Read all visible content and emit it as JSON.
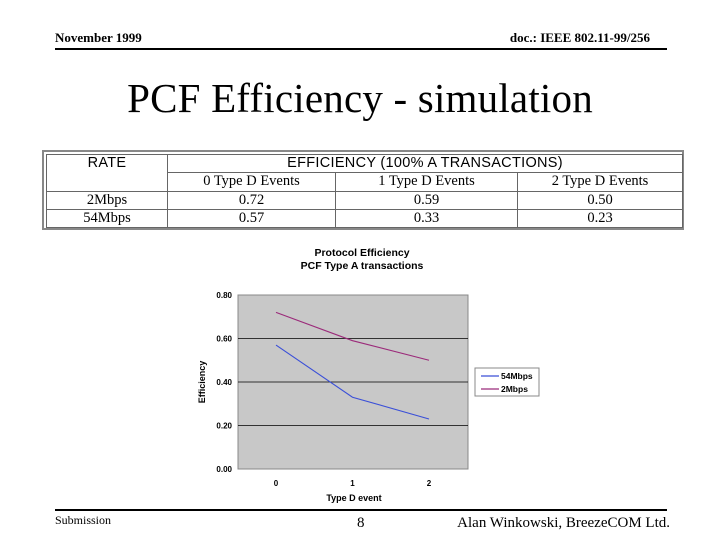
{
  "header": {
    "date": "November 1999",
    "doc_id": "doc.: IEEE 802.11-99/256"
  },
  "title": "PCF Efficiency - simulation",
  "table": {
    "rate_header": "RATE",
    "efficiency_header": "EFFICIENCY (100% A TRANSACTIONS)",
    "columns": [
      "0 Type D Events",
      "1 Type D Events",
      "2 Type D Events"
    ],
    "rows": [
      {
        "rate": "2Mbps",
        "values": [
          "0.72",
          "0.59",
          "0.50"
        ]
      },
      {
        "rate": "54Mbps",
        "values": [
          "0.57",
          "0.33",
          "0.23"
        ]
      }
    ]
  },
  "chart_data": {
    "type": "line",
    "title": "Protocol Efficiency",
    "subtitle": "PCF Type A transactions",
    "xlabel": "Type D event",
    "ylabel": "Efficiency",
    "x": [
      0,
      1,
      2
    ],
    "x_tick_labels": [
      "0",
      "1",
      "2"
    ],
    "y_tick_labels": [
      "0.00",
      "0.20",
      "0.40",
      "0.60",
      "0.80"
    ],
    "ylim": [
      0,
      0.8
    ],
    "series": [
      {
        "name": "54Mbps",
        "values": [
          0.57,
          0.33,
          0.23
        ],
        "color": "#3a4fd8"
      },
      {
        "name": "2Mbps",
        "values": [
          0.72,
          0.59,
          0.5
        ],
        "color": "#9b2a7a"
      }
    ],
    "legend_position": "right",
    "plot_background": "#c8c8c8",
    "grid": true
  },
  "footer": {
    "left": "Submission",
    "page": "8",
    "right": "Alan Winkowski, BreezeCOM Ltd."
  }
}
